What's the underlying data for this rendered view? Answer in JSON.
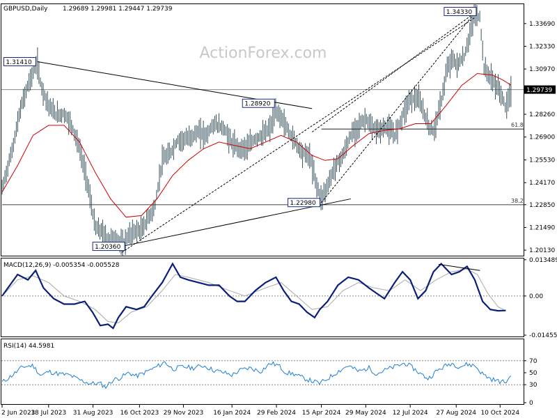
{
  "chart_data": [
    {
      "panel": "price",
      "type": "line",
      "symbol_header": "GBPUSD,Daily",
      "ohlc_header": "1.29689 1.29981 1.29447 1.29739",
      "watermark": "ActionForex.com",
      "y_ticks": [
        1.3369,
        1.3233,
        1.3097,
        1.2826,
        1.269,
        1.2553,
        1.2417,
        1.2285,
        1.2149,
        1.2013
      ],
      "y_tick_labels": [
        "1.33690",
        "1.32330",
        "1.30970",
        "1.28260",
        "1.26900",
        "1.25530",
        "1.24170",
        "1.22850",
        "1.21490",
        "1.20130"
      ],
      "ylim": [
        1.198,
        1.3485
      ],
      "current_price": 1.29739,
      "current_price_label": "1.29739",
      "x_ticks": [
        {
          "label": "2 Jun 2023",
          "t": 0
        },
        {
          "label": "18 Jul 2023",
          "t": 0.09
        },
        {
          "label": "31 Aug 2023",
          "t": 0.176
        },
        {
          "label": "16 Oct 2023",
          "t": 0.266
        },
        {
          "label": "29 Nov 2023",
          "t": 0.351
        },
        {
          "label": "16 Jan 2024",
          "t": 0.445
        },
        {
          "label": "29 Feb 2024",
          "t": 0.531
        },
        {
          "label": "15 Apr 2024",
          "t": 0.618
        },
        {
          "label": "29 May 2024",
          "t": 0.704
        },
        {
          "label": "12 Jul 2024",
          "t": 0.79
        },
        {
          "label": "27 Aug 2024",
          "t": 0.879
        },
        {
          "label": "10 Oct 2024",
          "t": 0.964
        }
      ],
      "price_path": [
        [
          0,
          1.238
        ],
        [
          0.02,
          1.262
        ],
        [
          0.035,
          1.285
        ],
        [
          0.05,
          1.3
        ],
        [
          0.062,
          1.309
        ],
        [
          0.068,
          1.314
        ],
        [
          0.075,
          1.3
        ],
        [
          0.09,
          1.288
        ],
        [
          0.105,
          1.282
        ],
        [
          0.12,
          1.283
        ],
        [
          0.135,
          1.276
        ],
        [
          0.15,
          1.262
        ],
        [
          0.165,
          1.242
        ],
        [
          0.18,
          1.215
        ],
        [
          0.195,
          1.212
        ],
        [
          0.205,
          1.208
        ],
        [
          0.22,
          1.209
        ],
        [
          0.232,
          1.204
        ],
        [
          0.245,
          1.21
        ],
        [
          0.258,
          1.213
        ],
        [
          0.27,
          1.213
        ],
        [
          0.285,
          1.222
        ],
        [
          0.295,
          1.226
        ],
        [
          0.31,
          1.255
        ],
        [
          0.325,
          1.259
        ],
        [
          0.34,
          1.267
        ],
        [
          0.36,
          1.268
        ],
        [
          0.38,
          1.272
        ],
        [
          0.395,
          1.27
        ],
        [
          0.41,
          1.277
        ],
        [
          0.43,
          1.274
        ],
        [
          0.445,
          1.265
        ],
        [
          0.46,
          1.262
        ],
        [
          0.475,
          1.263
        ],
        [
          0.49,
          1.268
        ],
        [
          0.505,
          1.27
        ],
        [
          0.52,
          1.275
        ],
        [
          0.53,
          1.284
        ],
        [
          0.54,
          1.281
        ],
        [
          0.555,
          1.272
        ],
        [
          0.57,
          1.265
        ],
        [
          0.58,
          1.26
        ],
        [
          0.595,
          1.258
        ],
        [
          0.61,
          1.239
        ],
        [
          0.618,
          1.232
        ],
        [
          0.63,
          1.24
        ],
        [
          0.645,
          1.252
        ],
        [
          0.66,
          1.258
        ],
        [
          0.675,
          1.27
        ],
        [
          0.69,
          1.276
        ],
        [
          0.705,
          1.28
        ],
        [
          0.715,
          1.274
        ],
        [
          0.73,
          1.273
        ],
        [
          0.745,
          1.275
        ],
        [
          0.76,
          1.27
        ],
        [
          0.775,
          1.282
        ],
        [
          0.79,
          1.292
        ],
        [
          0.805,
          1.292
        ],
        [
          0.815,
          1.285
        ],
        [
          0.825,
          1.276
        ],
        [
          0.835,
          1.272
        ],
        [
          0.85,
          1.29
        ],
        [
          0.86,
          1.308
        ],
        [
          0.87,
          1.316
        ],
        [
          0.88,
          1.312
        ],
        [
          0.895,
          1.317
        ],
        [
          0.905,
          1.33
        ],
        [
          0.915,
          1.343
        ],
        [
          0.925,
          1.34
        ],
        [
          0.933,
          1.31
        ],
        [
          0.945,
          1.305
        ],
        [
          0.955,
          1.3
        ],
        [
          0.965,
          1.296
        ],
        [
          0.975,
          1.286
        ],
        [
          0.985,
          1.297
        ]
      ],
      "ma_path": [
        [
          0,
          1.236
        ],
        [
          0.03,
          1.252
        ],
        [
          0.06,
          1.27
        ],
        [
          0.09,
          1.276
        ],
        [
          0.12,
          1.276
        ],
        [
          0.15,
          1.266
        ],
        [
          0.18,
          1.248
        ],
        [
          0.21,
          1.232
        ],
        [
          0.24,
          1.221
        ],
        [
          0.27,
          1.222
        ],
        [
          0.3,
          1.232
        ],
        [
          0.33,
          1.246
        ],
        [
          0.36,
          1.255
        ],
        [
          0.39,
          1.262
        ],
        [
          0.42,
          1.266
        ],
        [
          0.45,
          1.264
        ],
        [
          0.48,
          1.262
        ],
        [
          0.51,
          1.266
        ],
        [
          0.54,
          1.27
        ],
        [
          0.57,
          1.266
        ],
        [
          0.6,
          1.258
        ],
        [
          0.625,
          1.255
        ],
        [
          0.65,
          1.256
        ],
        [
          0.68,
          1.264
        ],
        [
          0.71,
          1.271
        ],
        [
          0.74,
          1.273
        ],
        [
          0.77,
          1.274
        ],
        [
          0.8,
          1.277
        ],
        [
          0.83,
          1.277
        ],
        [
          0.86,
          1.288
        ],
        [
          0.89,
          1.3
        ],
        [
          0.92,
          1.307
        ],
        [
          0.95,
          1.306
        ],
        [
          0.97,
          1.303
        ],
        [
          0.985,
          1.3
        ]
      ],
      "price_labels": [
        {
          "text": "1.31410",
          "t": 0.068,
          "value": 1.3141,
          "side": "left"
        },
        {
          "text": "1.28920",
          "t": 0.53,
          "value": 1.2892,
          "side": "left"
        },
        {
          "text": "1.22980",
          "t": 0.618,
          "value": 1.2298,
          "side": "left"
        },
        {
          "text": "1.20360",
          "t": 0.232,
          "value": 1.2036,
          "side": "left"
        },
        {
          "text": "1.34330",
          "t": 0.915,
          "value": 1.3433,
          "side": "left"
        }
      ],
      "fib_levels": [
        {
          "label": "61.8",
          "value": 1.2738,
          "from_t": 0.618
        },
        {
          "label": "38.2",
          "value": 1.2285,
          "from_t": 0
        }
      ],
      "horizontal_line": 1.2974,
      "trendlines": [
        {
          "style": "solid",
          "from": [
            0.068,
            1.3141
          ],
          "to": [
            0.6,
            1.286
          ]
        },
        {
          "style": "solid",
          "from": [
            0.232,
            1.2036
          ],
          "to": [
            0.675,
            1.232
          ]
        },
        {
          "style": "dashed",
          "from": [
            0.232,
            1.2
          ],
          "to": [
            0.915,
            1.3405
          ]
        },
        {
          "style": "dashed",
          "from": [
            0.6,
            1.272
          ],
          "to": [
            0.915,
            1.3433
          ]
        },
        {
          "style": "dashed",
          "from": [
            0.618,
            1.2298
          ],
          "to": [
            0.915,
            1.3433
          ]
        }
      ]
    },
    {
      "panel": "macd",
      "type": "line",
      "header": "MACD(12,26,9) -0.005354 -0.005528",
      "y_tick_labels": [
        "0.013489",
        "0.00",
        "-0.014554"
      ],
      "y_ticks": [
        0.013489,
        0.0,
        -0.014554
      ],
      "ylim": [
        -0.0148,
        0.0137
      ],
      "macd_path": [
        [
          0,
          0.0
        ],
        [
          0.03,
          0.008
        ],
        [
          0.05,
          0.006
        ],
        [
          0.065,
          0.0095
        ],
        [
          0.08,
          0.003
        ],
        [
          0.1,
          -0.001
        ],
        [
          0.12,
          -0.003
        ],
        [
          0.14,
          -0.003
        ],
        [
          0.16,
          -0.002
        ],
        [
          0.175,
          -0.006
        ],
        [
          0.19,
          -0.011
        ],
        [
          0.205,
          -0.0105
        ],
        [
          0.215,
          -0.012
        ],
        [
          0.225,
          -0.008
        ],
        [
          0.24,
          -0.004
        ],
        [
          0.26,
          -0.005
        ],
        [
          0.275,
          -0.004
        ],
        [
          0.29,
          0.0
        ],
        [
          0.31,
          0.005
        ],
        [
          0.33,
          0.012
        ],
        [
          0.345,
          0.007
        ],
        [
          0.36,
          0.006
        ],
        [
          0.38,
          0.005
        ],
        [
          0.4,
          0.004
        ],
        [
          0.42,
          0.004
        ],
        [
          0.44,
          0.0
        ],
        [
          0.455,
          -0.002
        ],
        [
          0.47,
          -0.002
        ],
        [
          0.49,
          0.002
        ],
        [
          0.51,
          0.005
        ],
        [
          0.53,
          0.007
        ],
        [
          0.545,
          0.002
        ],
        [
          0.56,
          -0.002
        ],
        [
          0.575,
          -0.003
        ],
        [
          0.59,
          -0.006
        ],
        [
          0.605,
          -0.008
        ],
        [
          0.615,
          -0.005
        ],
        [
          0.63,
          -0.002
        ],
        [
          0.65,
          0.004
        ],
        [
          0.67,
          0.007
        ],
        [
          0.69,
          0.006
        ],
        [
          0.71,
          0.003
        ],
        [
          0.725,
          0.001
        ],
        [
          0.74,
          -0.001
        ],
        [
          0.76,
          0.005
        ],
        [
          0.775,
          0.009
        ],
        [
          0.79,
          0.006
        ],
        [
          0.805,
          -0.001
        ],
        [
          0.82,
          0.002
        ],
        [
          0.835,
          0.009
        ],
        [
          0.85,
          0.012
        ],
        [
          0.87,
          0.008
        ],
        [
          0.885,
          0.009
        ],
        [
          0.9,
          0.011
        ],
        [
          0.915,
          0.006
        ],
        [
          0.93,
          -0.002
        ],
        [
          0.945,
          -0.005
        ],
        [
          0.96,
          -0.0055
        ],
        [
          0.975,
          -0.0054
        ]
      ],
      "signal_path": [
        [
          0,
          0.0
        ],
        [
          0.03,
          0.006
        ],
        [
          0.06,
          0.0075
        ],
        [
          0.09,
          0.005
        ],
        [
          0.12,
          0.0
        ],
        [
          0.15,
          -0.002
        ],
        [
          0.18,
          -0.005
        ],
        [
          0.205,
          -0.0095
        ],
        [
          0.225,
          -0.01
        ],
        [
          0.25,
          -0.006
        ],
        [
          0.28,
          -0.004
        ],
        [
          0.31,
          0.002
        ],
        [
          0.335,
          0.008
        ],
        [
          0.36,
          0.007
        ],
        [
          0.4,
          0.005
        ],
        [
          0.44,
          0.002
        ],
        [
          0.47,
          0.0
        ],
        [
          0.51,
          0.003
        ],
        [
          0.54,
          0.005
        ],
        [
          0.57,
          0.0
        ],
        [
          0.6,
          -0.005
        ],
        [
          0.63,
          -0.004
        ],
        [
          0.66,
          0.002
        ],
        [
          0.69,
          0.005
        ],
        [
          0.72,
          0.003
        ],
        [
          0.75,
          0.002
        ],
        [
          0.78,
          0.006
        ],
        [
          0.81,
          0.002
        ],
        [
          0.84,
          0.006
        ],
        [
          0.87,
          0.009
        ],
        [
          0.9,
          0.01
        ],
        [
          0.92,
          0.008
        ],
        [
          0.94,
          0.001
        ],
        [
          0.96,
          -0.004
        ],
        [
          0.975,
          -0.0055
        ]
      ],
      "divergence_line": {
        "from": [
          0.845,
          0.0118
        ],
        "to": [
          0.925,
          0.0095
        ]
      }
    },
    {
      "panel": "rsi",
      "type": "line",
      "header": "RSI(14) 44.5981",
      "y_ticks": [
        70,
        50,
        30,
        0
      ],
      "y_tick_labels": [
        "70",
        "50",
        "30",
        "0"
      ],
      "ylim": [
        0,
        100
      ],
      "dotted_levels": [
        70,
        30
      ],
      "rsi_path": [
        [
          0,
          34
        ],
        [
          0.02,
          46
        ],
        [
          0.04,
          60
        ],
        [
          0.06,
          62
        ],
        [
          0.075,
          45
        ],
        [
          0.09,
          52
        ],
        [
          0.11,
          48
        ],
        [
          0.13,
          46
        ],
        [
          0.15,
          38
        ],
        [
          0.17,
          32
        ],
        [
          0.19,
          32
        ],
        [
          0.2,
          26
        ],
        [
          0.215,
          38
        ],
        [
          0.23,
          42
        ],
        [
          0.245,
          50
        ],
        [
          0.26,
          44
        ],
        [
          0.28,
          52
        ],
        [
          0.3,
          60
        ],
        [
          0.315,
          68
        ],
        [
          0.33,
          56
        ],
        [
          0.35,
          60
        ],
        [
          0.37,
          58
        ],
        [
          0.39,
          62
        ],
        [
          0.41,
          54
        ],
        [
          0.43,
          50
        ],
        [
          0.445,
          46
        ],
        [
          0.46,
          54
        ],
        [
          0.48,
          58
        ],
        [
          0.5,
          52
        ],
        [
          0.52,
          66
        ],
        [
          0.535,
          62
        ],
        [
          0.55,
          50
        ],
        [
          0.565,
          48
        ],
        [
          0.58,
          42
        ],
        [
          0.6,
          36
        ],
        [
          0.615,
          32
        ],
        [
          0.63,
          40
        ],
        [
          0.65,
          52
        ],
        [
          0.67,
          62
        ],
        [
          0.69,
          52
        ],
        [
          0.71,
          58
        ],
        [
          0.725,
          48
        ],
        [
          0.74,
          54
        ],
        [
          0.76,
          60
        ],
        [
          0.78,
          66
        ],
        [
          0.795,
          58
        ],
        [
          0.81,
          48
        ],
        [
          0.825,
          40
        ],
        [
          0.84,
          52
        ],
        [
          0.855,
          60
        ],
        [
          0.87,
          66
        ],
        [
          0.885,
          60
        ],
        [
          0.9,
          64
        ],
        [
          0.915,
          62
        ],
        [
          0.93,
          48
        ],
        [
          0.945,
          40
        ],
        [
          0.96,
          36
        ],
        [
          0.975,
          34
        ],
        [
          0.985,
          44.6
        ]
      ]
    }
  ]
}
